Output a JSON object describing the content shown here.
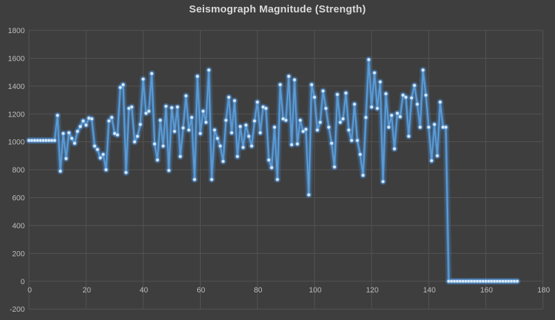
{
  "title": {
    "text": "Seismograph Magnitude (Strength)"
  },
  "colors": {
    "background": "#3e3e3e",
    "gridline": "#545454",
    "axis_label": "#bdbdbd",
    "title_color": "#d9d9d9",
    "series_line": "#5b9bd5",
    "series_glow": "#4a90d9",
    "marker_fill": "#dceaf8",
    "marker_stroke": "#7fb2e0"
  },
  "chart_data": {
    "type": "line",
    "title": "Seismograph Magnitude (Strength)",
    "xlabel": "",
    "ylabel": "",
    "xlim": [
      0,
      180
    ],
    "ylim": [
      -200,
      1800
    ],
    "x_ticks": [
      0,
      20,
      40,
      60,
      80,
      100,
      120,
      140,
      160,
      180
    ],
    "y_ticks": [
      -200,
      0,
      200,
      400,
      600,
      800,
      1000,
      1200,
      1400,
      1600,
      1800
    ],
    "grid": true,
    "legend": false,
    "series": [
      {
        "name": "Seismograph Magnitude",
        "marker": "circle",
        "x_start": 0,
        "x_step": 1,
        "values": [
          1010,
          1010,
          1010,
          1010,
          1010,
          1010,
          1010,
          1010,
          1010,
          1010,
          1190,
          790,
          1060,
          880,
          1065,
          1025,
          990,
          1075,
          1110,
          1150,
          1120,
          1170,
          1165,
          970,
          945,
          885,
          910,
          800,
          1150,
          1175,
          1060,
          1050,
          1390,
          1410,
          780,
          1240,
          1250,
          1000,
          1040,
          1125,
          1450,
          1205,
          1220,
          1490,
          985,
          870,
          1155,
          970,
          1255,
          795,
          1245,
          1075,
          1250,
          895,
          1100,
          1330,
          1085,
          1175,
          730,
          1470,
          1060,
          1220,
          1140,
          1515,
          730,
          1085,
          1025,
          970,
          860,
          1155,
          1320,
          1065,
          1295,
          895,
          1110,
          960,
          1120,
          1040,
          970,
          1150,
          1285,
          1065,
          1250,
          1240,
          870,
          815,
          1105,
          730,
          1410,
          1165,
          1155,
          1470,
          980,
          1445,
          985,
          1155,
          1075,
          1090,
          620,
          1410,
          1320,
          1085,
          1140,
          1365,
          1240,
          1105,
          990,
          820,
          1340,
          1140,
          1165,
          1350,
          1085,
          1010,
          1270,
          1010,
          910,
          760,
          1175,
          1590,
          1250,
          1495,
          1240,
          1430,
          715,
          1345,
          1105,
          1190,
          950,
          1205,
          1180,
          1335,
          1320,
          1040,
          1315,
          1405,
          1270,
          1105,
          1515,
          1335,
          1105,
          865,
          1125,
          900,
          1285,
          1105,
          1105,
          0,
          0,
          0,
          0,
          0,
          0,
          0,
          0,
          0,
          0,
          0,
          0,
          0,
          0,
          0,
          0,
          0,
          0,
          0,
          0,
          0,
          0,
          0,
          0,
          0
        ]
      }
    ]
  }
}
